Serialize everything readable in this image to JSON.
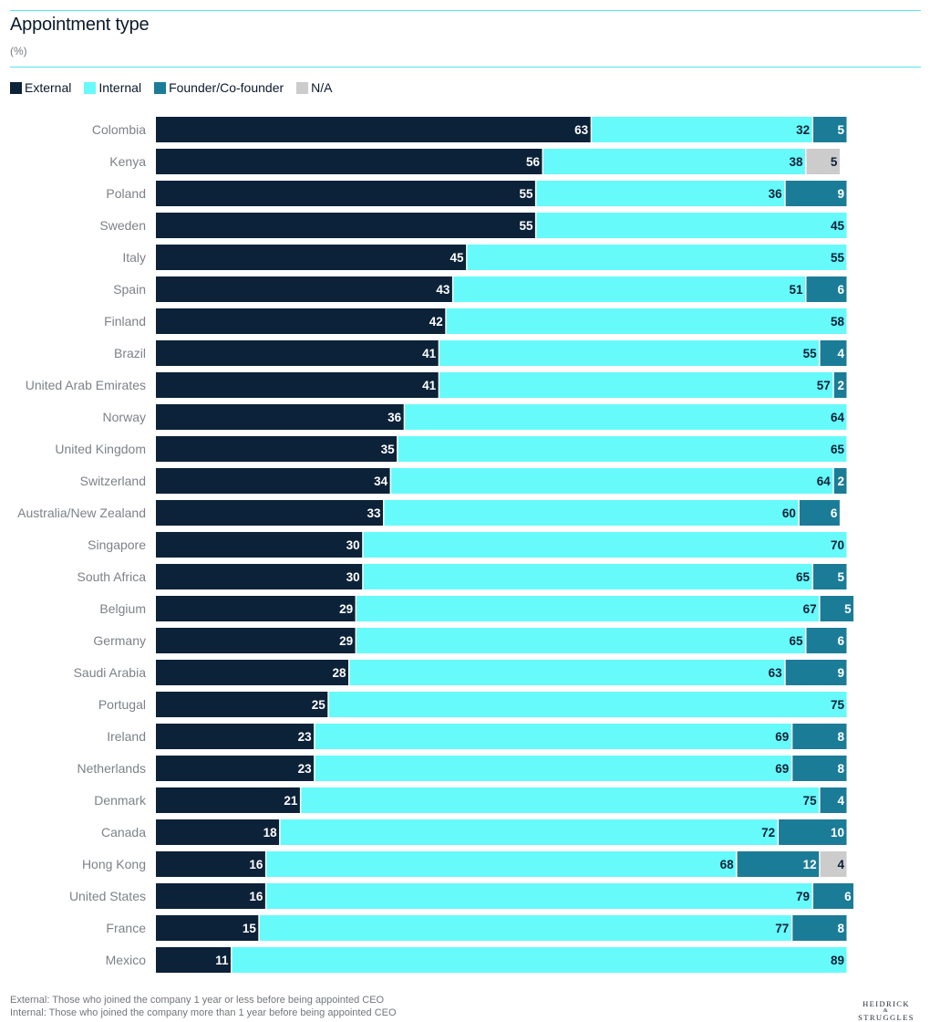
{
  "header": {
    "title": "Appointment type",
    "unit": "(%)"
  },
  "legend": [
    {
      "key": "external",
      "label": "External",
      "color": "#0c2238"
    },
    {
      "key": "internal",
      "label": "Internal",
      "color": "#66fafb"
    },
    {
      "key": "founder",
      "label": "Founder/Co-founder",
      "color": "#1b7c97"
    },
    {
      "key": "na",
      "label": "N/A",
      "color": "#cccccc"
    }
  ],
  "chart_data": {
    "type": "bar",
    "orientation": "horizontal",
    "stacked": true,
    "categories": [
      "Colombia",
      "Kenya",
      "Poland",
      "Sweden",
      "Italy",
      "Spain",
      "Finland",
      "Brazil",
      "United Arab Emirates",
      "Norway",
      "United Kingdom",
      "Switzerland",
      "Australia/New Zealand",
      "Singapore",
      "South Africa",
      "Belgium",
      "Germany",
      "Saudi Arabia",
      "Portugal",
      "Ireland",
      "Netherlands",
      "Denmark",
      "Canada",
      "Hong Kong",
      "United States",
      "France",
      "Mexico"
    ],
    "series": [
      {
        "name": "External",
        "color": "#0c2238",
        "values": [
          63,
          56,
          55,
          55,
          45,
          43,
          42,
          41,
          41,
          36,
          35,
          34,
          33,
          30,
          30,
          29,
          29,
          28,
          25,
          23,
          23,
          21,
          18,
          16,
          16,
          15,
          11
        ]
      },
      {
        "name": "Internal",
        "color": "#66fafb",
        "values": [
          32,
          38,
          36,
          45,
          55,
          51,
          58,
          55,
          57,
          64,
          65,
          64,
          60,
          70,
          65,
          67,
          65,
          63,
          75,
          69,
          69,
          75,
          72,
          68,
          79,
          77,
          89
        ]
      },
      {
        "name": "Founder/Co-founder",
        "color": "#1b7c97",
        "values": [
          5,
          0,
          9,
          0,
          0,
          6,
          0,
          4,
          2,
          0,
          0,
          2,
          6,
          0,
          5,
          5,
          6,
          9,
          0,
          8,
          8,
          4,
          10,
          12,
          6,
          8,
          0
        ]
      },
      {
        "name": "N/A",
        "color": "#cccccc",
        "values": [
          0,
          5,
          0,
          0,
          0,
          0,
          0,
          0,
          0,
          0,
          0,
          0,
          0,
          0,
          0,
          0,
          0,
          0,
          0,
          0,
          0,
          0,
          0,
          4,
          0,
          0,
          0
        ]
      }
    ],
    "xlim": [
      0,
      100
    ],
    "grid": false,
    "legend_position": "top-left"
  },
  "footnotes": [
    "External: Those who joined the company 1 year or less before being appointed CEO",
    "Internal: Those who joined the company more than 1 year before being appointed CEO"
  ],
  "brand": {
    "line1": "HEIDRICK",
    "amp": "&",
    "line2": "STRUGGLES"
  }
}
